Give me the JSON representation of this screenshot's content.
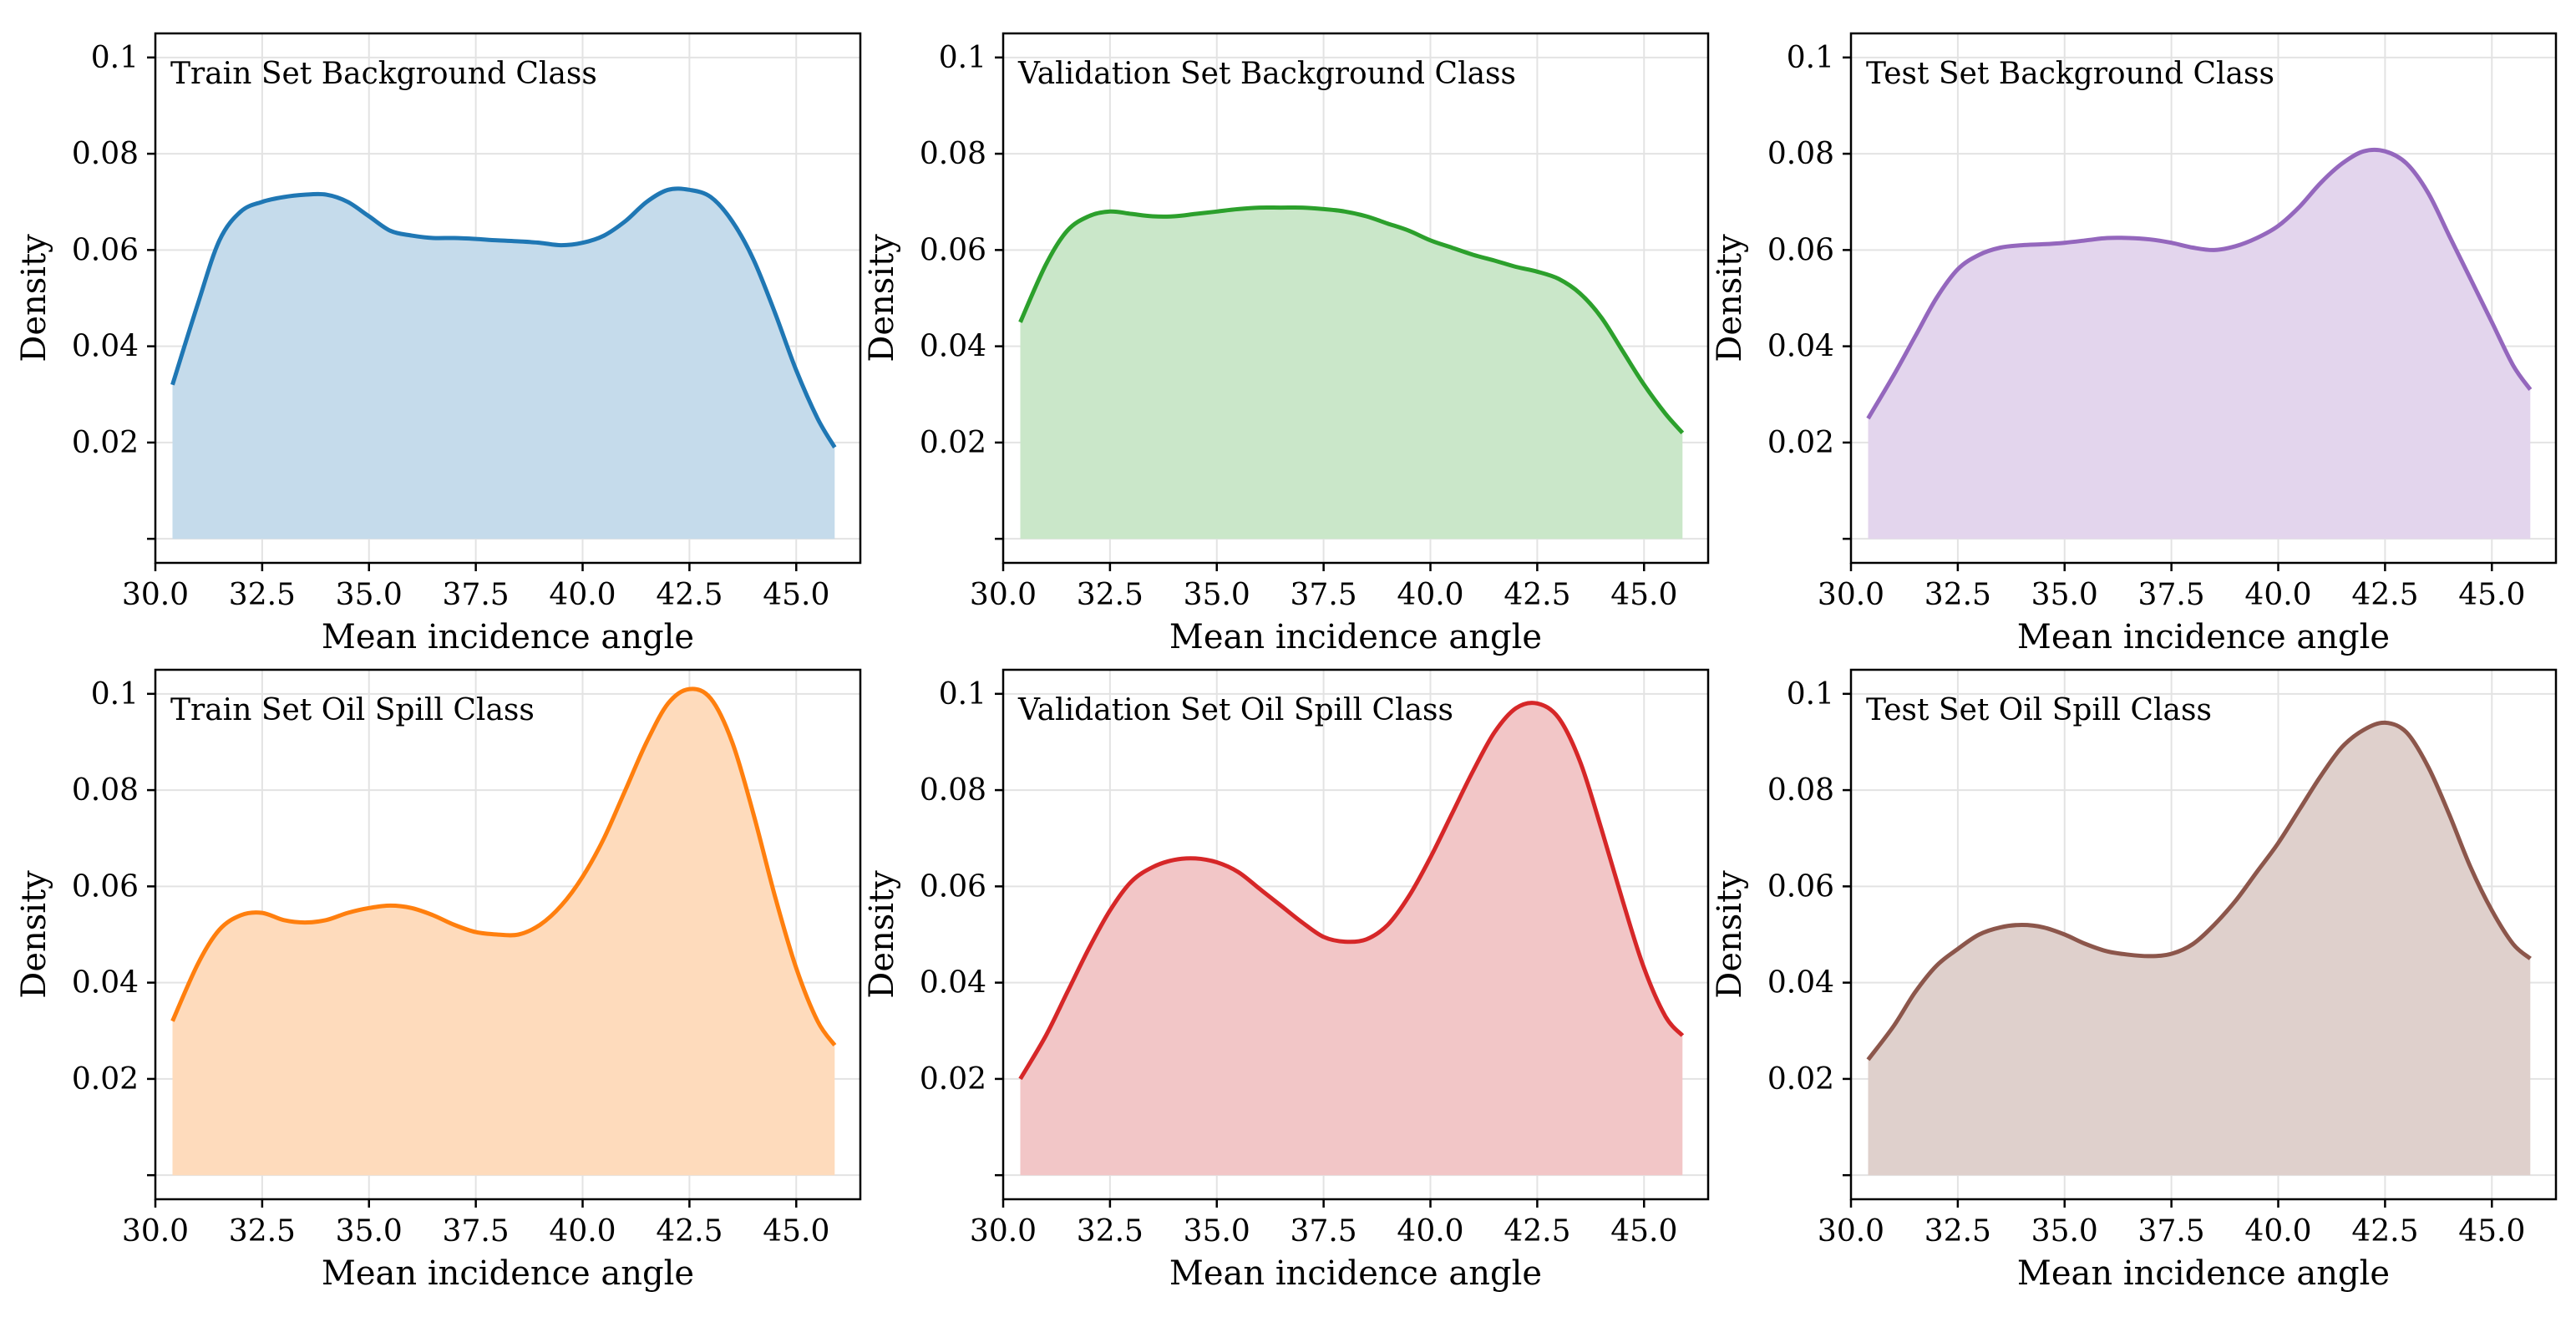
{
  "chart_data": [
    {
      "type": "area",
      "title": "Train Set Background Class",
      "xlabel": "Mean incidence angle",
      "ylabel": "Density",
      "color": "#1f77b4",
      "fill_color": "#c5dbeb",
      "xlim": [
        30.0,
        46.5
      ],
      "ylim": [
        -0.005,
        0.105
      ],
      "x_ticks": [
        30.0,
        32.5,
        35.0,
        37.5,
        40.0,
        42.5,
        45.0
      ],
      "x_tick_labels": [
        "30.0",
        "32.5",
        "35.0",
        "37.5",
        "40.0",
        "42.5",
        "45.0"
      ],
      "y_ticks": [
        0.0,
        0.02,
        0.04,
        0.06,
        0.08,
        0.1
      ],
      "y_tick_labels": [
        "",
        "0.02",
        "0.04",
        "0.06",
        "0.08",
        "0.1"
      ],
      "grid": true,
      "series": [
        {
          "x": [
            30.4,
            31.0,
            31.5,
            32.0,
            32.5,
            33.0,
            33.5,
            34.0,
            34.5,
            35.0,
            35.5,
            36.0,
            36.5,
            37.0,
            37.5,
            38.0,
            38.5,
            39.0,
            39.5,
            40.0,
            40.5,
            41.0,
            41.5,
            42.0,
            42.5,
            43.0,
            43.5,
            44.0,
            44.5,
            45.0,
            45.5,
            45.9
          ],
          "values": [
            0.032,
            0.049,
            0.062,
            0.068,
            0.07,
            0.071,
            0.0715,
            0.0715,
            0.07,
            0.067,
            0.064,
            0.063,
            0.0625,
            0.0625,
            0.0623,
            0.062,
            0.0618,
            0.0615,
            0.061,
            0.0615,
            0.063,
            0.066,
            0.07,
            0.0725,
            0.0725,
            0.071,
            0.066,
            0.058,
            0.047,
            0.035,
            0.025,
            0.019
          ]
        }
      ]
    },
    {
      "type": "area",
      "title": "Validation Set Background Class",
      "xlabel": "Mean incidence angle",
      "ylabel": "Density",
      "color": "#2ca02c",
      "fill_color": "#cae7c9",
      "xlim": [
        30.0,
        46.5
      ],
      "ylim": [
        -0.005,
        0.105
      ],
      "x_ticks": [
        30.0,
        32.5,
        35.0,
        37.5,
        40.0,
        42.5,
        45.0
      ],
      "x_tick_labels": [
        "30.0",
        "32.5",
        "35.0",
        "37.5",
        "40.0",
        "42.5",
        "45.0"
      ],
      "y_ticks": [
        0.0,
        0.02,
        0.04,
        0.06,
        0.08,
        0.1
      ],
      "y_tick_labels": [
        "",
        "0.02",
        "0.04",
        "0.06",
        "0.08",
        "0.1"
      ],
      "grid": true,
      "series": [
        {
          "x": [
            30.4,
            31.0,
            31.5,
            32.0,
            32.5,
            33.0,
            33.5,
            34.0,
            34.5,
            35.0,
            35.5,
            36.0,
            36.5,
            37.0,
            37.5,
            38.0,
            38.5,
            39.0,
            39.5,
            40.0,
            40.5,
            41.0,
            41.5,
            42.0,
            42.5,
            43.0,
            43.5,
            44.0,
            44.5,
            45.0,
            45.5,
            45.9
          ],
          "values": [
            0.045,
            0.057,
            0.064,
            0.067,
            0.068,
            0.0675,
            0.067,
            0.067,
            0.0675,
            0.068,
            0.0685,
            0.0688,
            0.0688,
            0.0688,
            0.0685,
            0.068,
            0.067,
            0.0655,
            0.064,
            0.062,
            0.0605,
            0.059,
            0.0578,
            0.0565,
            0.0555,
            0.054,
            0.051,
            0.046,
            0.039,
            0.032,
            0.026,
            0.022
          ]
        }
      ]
    },
    {
      "type": "area",
      "title": "Test Set Background Class",
      "xlabel": "Mean incidence angle",
      "ylabel": "Density",
      "color": "#9467bd",
      "fill_color": "#e3d5ed",
      "xlim": [
        30.0,
        46.5
      ],
      "ylim": [
        -0.005,
        0.105
      ],
      "x_ticks": [
        30.0,
        32.5,
        35.0,
        37.5,
        40.0,
        42.5,
        45.0
      ],
      "x_tick_labels": [
        "30.0",
        "32.5",
        "35.0",
        "37.5",
        "40.0",
        "42.5",
        "45.0"
      ],
      "y_ticks": [
        0.0,
        0.02,
        0.04,
        0.06,
        0.08,
        0.1
      ],
      "y_tick_labels": [
        "",
        "0.02",
        "0.04",
        "0.06",
        "0.08",
        "0.1"
      ],
      "grid": true,
      "series": [
        {
          "x": [
            30.4,
            31.0,
            31.5,
            32.0,
            32.5,
            33.0,
            33.5,
            34.0,
            34.5,
            35.0,
            35.5,
            36.0,
            36.5,
            37.0,
            37.5,
            38.0,
            38.5,
            39.0,
            39.5,
            40.0,
            40.5,
            41.0,
            41.5,
            42.0,
            42.5,
            43.0,
            43.5,
            44.0,
            44.5,
            45.0,
            45.5,
            45.9
          ],
          "values": [
            0.025,
            0.034,
            0.042,
            0.05,
            0.056,
            0.059,
            0.0605,
            0.061,
            0.0612,
            0.0615,
            0.062,
            0.0625,
            0.0625,
            0.0622,
            0.0615,
            0.0605,
            0.06,
            0.0608,
            0.0625,
            0.065,
            0.069,
            0.074,
            0.078,
            0.0805,
            0.0805,
            0.078,
            0.072,
            0.063,
            0.054,
            0.045,
            0.036,
            0.031
          ]
        }
      ]
    },
    {
      "type": "area",
      "title": "Train Set Oil Spill Class",
      "xlabel": "Mean incidence angle",
      "ylabel": "Density",
      "color": "#ff7f0e",
      "fill_color": "#fedbbc",
      "xlim": [
        30.0,
        46.5
      ],
      "ylim": [
        -0.005,
        0.105
      ],
      "x_ticks": [
        30.0,
        32.5,
        35.0,
        37.5,
        40.0,
        42.5,
        45.0
      ],
      "x_tick_labels": [
        "30.0",
        "32.5",
        "35.0",
        "37.5",
        "40.0",
        "42.5",
        "45.0"
      ],
      "y_ticks": [
        0.0,
        0.02,
        0.04,
        0.06,
        0.08,
        0.1
      ],
      "y_tick_labels": [
        "",
        "0.02",
        "0.04",
        "0.06",
        "0.08",
        "0.1"
      ],
      "grid": true,
      "series": [
        {
          "x": [
            30.4,
            31.0,
            31.5,
            32.0,
            32.5,
            33.0,
            33.5,
            34.0,
            34.5,
            35.0,
            35.5,
            36.0,
            36.5,
            37.0,
            37.5,
            38.0,
            38.5,
            39.0,
            39.5,
            40.0,
            40.5,
            41.0,
            41.5,
            42.0,
            42.5,
            43.0,
            43.5,
            44.0,
            44.5,
            45.0,
            45.5,
            45.9
          ],
          "values": [
            0.032,
            0.044,
            0.051,
            0.054,
            0.0545,
            0.053,
            0.0525,
            0.053,
            0.0545,
            0.0555,
            0.056,
            0.0555,
            0.054,
            0.052,
            0.0505,
            0.05,
            0.05,
            0.052,
            0.056,
            0.062,
            0.07,
            0.08,
            0.09,
            0.098,
            0.101,
            0.099,
            0.09,
            0.075,
            0.058,
            0.043,
            0.032,
            0.027
          ]
        }
      ]
    },
    {
      "type": "area",
      "title": "Validation Set Oil Spill Class",
      "xlabel": "Mean incidence angle",
      "ylabel": "Density",
      "color": "#d62728",
      "fill_color": "#f2c6c7",
      "xlim": [
        30.0,
        46.5
      ],
      "ylim": [
        -0.005,
        0.105
      ],
      "x_ticks": [
        30.0,
        32.5,
        35.0,
        37.5,
        40.0,
        42.5,
        45.0
      ],
      "x_tick_labels": [
        "30.0",
        "32.5",
        "35.0",
        "37.5",
        "40.0",
        "42.5",
        "45.0"
      ],
      "y_ticks": [
        0.0,
        0.02,
        0.04,
        0.06,
        0.08,
        0.1
      ],
      "y_tick_labels": [
        "",
        "0.02",
        "0.04",
        "0.06",
        "0.08",
        "0.1"
      ],
      "grid": true,
      "series": [
        {
          "x": [
            30.4,
            31.0,
            31.5,
            32.0,
            32.5,
            33.0,
            33.5,
            34.0,
            34.5,
            35.0,
            35.5,
            36.0,
            36.5,
            37.0,
            37.5,
            38.0,
            38.5,
            39.0,
            39.5,
            40.0,
            40.5,
            41.0,
            41.5,
            42.0,
            42.5,
            43.0,
            43.5,
            44.0,
            44.5,
            45.0,
            45.5,
            45.9
          ],
          "values": [
            0.02,
            0.029,
            0.038,
            0.047,
            0.055,
            0.061,
            0.064,
            0.0655,
            0.0658,
            0.065,
            0.063,
            0.0595,
            0.056,
            0.0525,
            0.0495,
            0.0485,
            0.049,
            0.052,
            0.058,
            0.066,
            0.075,
            0.084,
            0.092,
            0.097,
            0.098,
            0.095,
            0.086,
            0.072,
            0.057,
            0.043,
            0.033,
            0.029
          ]
        }
      ]
    },
    {
      "type": "area",
      "title": "Test Set Oil Spill Class",
      "xlabel": "Mean incidence angle",
      "ylabel": "Density",
      "color": "#8c564b",
      "fill_color": "#dfd0cc",
      "xlim": [
        30.0,
        46.5
      ],
      "ylim": [
        -0.005,
        0.105
      ],
      "x_ticks": [
        30.0,
        32.5,
        35.0,
        37.5,
        40.0,
        42.5,
        45.0
      ],
      "x_tick_labels": [
        "30.0",
        "32.5",
        "35.0",
        "37.5",
        "40.0",
        "42.5",
        "45.0"
      ],
      "y_ticks": [
        0.0,
        0.02,
        0.04,
        0.06,
        0.08,
        0.1
      ],
      "y_tick_labels": [
        "",
        "0.02",
        "0.04",
        "0.06",
        "0.08",
        "0.1"
      ],
      "grid": true,
      "series": [
        {
          "x": [
            30.4,
            31.0,
            31.5,
            32.0,
            32.5,
            33.0,
            33.5,
            34.0,
            34.5,
            35.0,
            35.5,
            36.0,
            36.5,
            37.0,
            37.5,
            38.0,
            38.5,
            39.0,
            39.5,
            40.0,
            40.5,
            41.0,
            41.5,
            42.0,
            42.5,
            43.0,
            43.5,
            44.0,
            44.5,
            45.0,
            45.5,
            45.9
          ],
          "values": [
            0.024,
            0.031,
            0.038,
            0.0435,
            0.047,
            0.05,
            0.0515,
            0.052,
            0.0515,
            0.05,
            0.048,
            0.0465,
            0.0458,
            0.0455,
            0.046,
            0.048,
            0.052,
            0.057,
            0.063,
            0.069,
            0.076,
            0.083,
            0.089,
            0.0925,
            0.094,
            0.092,
            0.085,
            0.075,
            0.064,
            0.055,
            0.048,
            0.045
          ]
        }
      ]
    }
  ]
}
